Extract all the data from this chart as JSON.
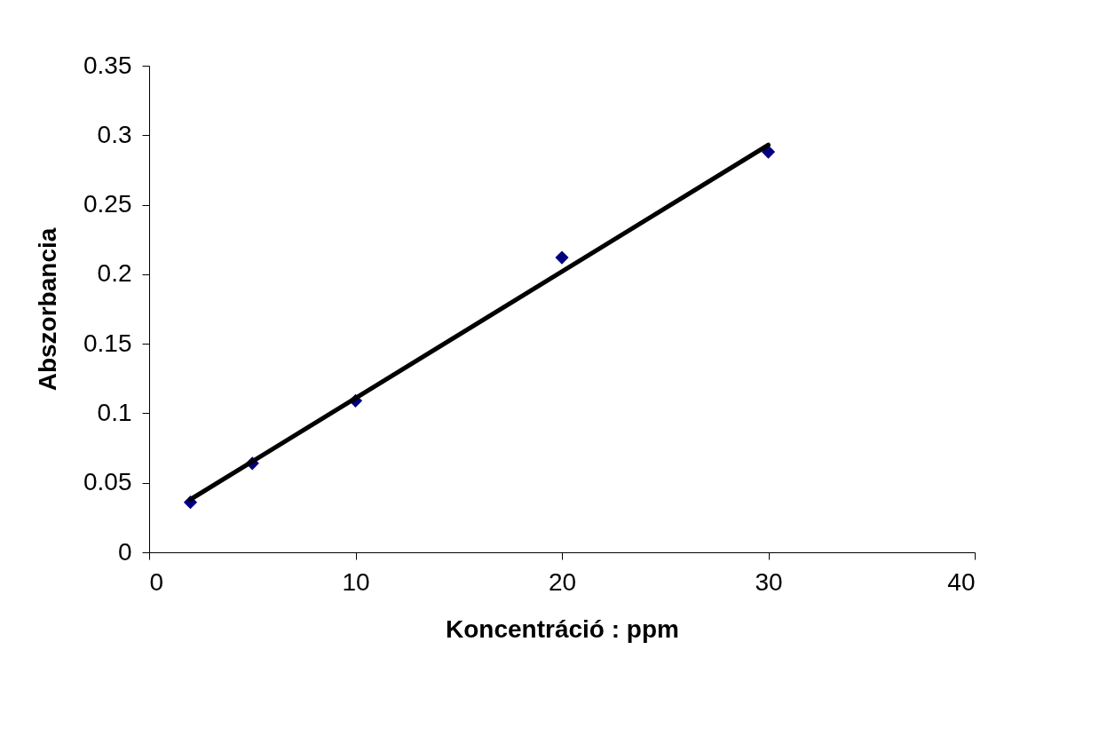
{
  "chart_data": {
    "type": "scatter",
    "xlabel": "Koncentráció : ppm",
    "ylabel": "Abszorbancia",
    "xlim": [
      0,
      40
    ],
    "xticks": [
      0,
      10,
      20,
      30,
      40
    ],
    "ylim": [
      0,
      0.35
    ],
    "yticks": [
      0,
      0.05,
      0.1,
      0.15,
      0.2,
      0.25,
      0.3,
      0.35
    ],
    "grid": false,
    "series": [
      {
        "marker": "diamond",
        "color": "#000080",
        "x": [
          2,
          5,
          10,
          20,
          30
        ],
        "values": [
          0.036,
          0.064,
          0.109,
          0.212,
          0.288
        ]
      },
      {
        "type": "line",
        "line_style": "solid",
        "color": "#000000",
        "x": [
          2,
          30
        ],
        "values": [
          0.038,
          0.293
        ]
      }
    ]
  }
}
